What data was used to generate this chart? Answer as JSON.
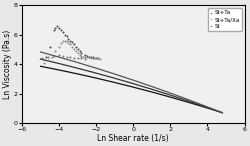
{
  "title": "",
  "xlabel": "Ln Shear rate (1/s)",
  "ylabel": "Ln Viscosity (Pa.s)",
  "xlim": [
    -6,
    6
  ],
  "ylim": [
    0,
    8
  ],
  "xticks": [
    -6,
    -4,
    -2,
    0,
    2,
    4,
    6
  ],
  "yticks": [
    0,
    2,
    4,
    6,
    8
  ],
  "legend_labels": [
    "St+Ta",
    "St+Ta/Xa",
    "St"
  ],
  "bg_color": "#e8e8e8",
  "ax_color": "#f0f0f0",
  "scatter_St_Ta": {
    "x": [
      -4.7,
      -4.5,
      -4.3,
      -4.2,
      -4.1,
      -4.0,
      -3.9,
      -3.8,
      -3.7,
      -3.6,
      -3.5,
      -3.4,
      -3.3,
      -3.2,
      -3.1,
      -3.0,
      -2.9,
      -2.8,
      -2.6,
      -2.5,
      -2.4,
      -2.3,
      -2.2,
      -2.1,
      -2.0,
      -1.9
    ],
    "y": [
      4.5,
      5.2,
      6.3,
      6.5,
      6.6,
      6.5,
      6.3,
      6.2,
      6.0,
      5.9,
      5.75,
      5.6,
      5.5,
      5.35,
      5.2,
      5.05,
      4.9,
      4.75,
      4.6,
      4.55,
      4.5,
      4.48,
      4.46,
      4.44,
      4.42,
      4.4
    ],
    "color": "#444444",
    "size": 8
  },
  "scatter_St_Ta_Xa": {
    "x": [
      -4.8,
      -4.6,
      -4.4,
      -4.2,
      -4.0,
      -3.9,
      -3.8,
      -3.7,
      -3.6,
      -3.5,
      -3.4,
      -3.3,
      -3.2,
      -3.1,
      -3.0,
      -2.9,
      -2.8,
      -2.7,
      -2.6,
      -2.5,
      -2.4,
      -2.3,
      -2.2,
      -2.1,
      -2.0,
      -1.9,
      -1.8
    ],
    "y": [
      4.1,
      4.3,
      4.5,
      4.9,
      5.2,
      5.45,
      5.55,
      5.6,
      5.55,
      5.45,
      5.35,
      5.2,
      5.05,
      4.9,
      4.75,
      4.62,
      4.55,
      4.52,
      4.5,
      4.48,
      4.46,
      4.44,
      4.43,
      4.42,
      4.41,
      4.4,
      4.38
    ],
    "color": "#888888",
    "size": 8
  },
  "scatter_St": {
    "x": [
      -4.9,
      -4.6,
      -4.3,
      -4.0,
      -3.8,
      -3.6,
      -3.4,
      -3.2,
      -3.0,
      -2.8,
      -2.6
    ],
    "y": [
      4.4,
      4.5,
      4.55,
      4.6,
      4.58,
      4.52,
      4.48,
      4.44,
      4.42,
      4.4,
      4.38
    ],
    "color": "#666666",
    "size": 7
  },
  "lines": [
    {
      "a": 4.42,
      "b": -0.38,
      "c": -0.012,
      "color": "#111111",
      "lw": 0.9
    },
    {
      "a": 4.5,
      "b": -0.38,
      "c": -0.012,
      "color": "#333333",
      "lw": 0.9
    },
    {
      "a": 4.58,
      "b": -0.38,
      "c": -0.012,
      "color": "#555555",
      "lw": 0.9
    }
  ],
  "x_line_start": -5.0,
  "x_line_end": 4.8
}
